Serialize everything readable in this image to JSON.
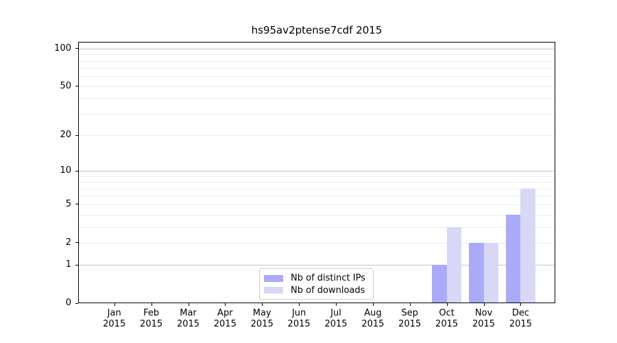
{
  "chart_data": {
    "type": "bar",
    "title": "hs95av2ptense7cdf 2015",
    "categories": [
      "Jan",
      "Feb",
      "Mar",
      "Apr",
      "May",
      "Jun",
      "Jul",
      "Aug",
      "Sep",
      "Oct",
      "Nov",
      "Dec"
    ],
    "x_tick_second_line": "2015",
    "series": [
      {
        "name": "Nb of distinct IPs",
        "color": "#aaaaf8",
        "values": [
          0,
          0,
          0,
          0,
          0,
          0,
          0,
          0,
          0,
          1,
          2,
          4
        ]
      },
      {
        "name": "Nb of downloads",
        "color": "#d8d8f6",
        "values": [
          0,
          0,
          0,
          0,
          0,
          0,
          0,
          0,
          0,
          3,
          2,
          7
        ]
      }
    ],
    "yscale": "log1p",
    "ylim": [
      0,
      113
    ],
    "yticks": [
      0,
      1,
      2,
      5,
      10,
      20,
      50,
      100
    ],
    "grid": true,
    "grid_major_values": [
      1,
      10,
      100
    ],
    "grid_minor_values": [
      2,
      3,
      4,
      5,
      6,
      7,
      8,
      9,
      20,
      30,
      40,
      50,
      60,
      70,
      80,
      90
    ],
    "legend_position": "lower center"
  },
  "colors": {
    "background": "#ffffff",
    "axis_frame": "#000000",
    "grid_major": "#c4c4c4",
    "grid_minor": "#ececec",
    "text": "#000000",
    "legend_border": "#cccccc"
  }
}
